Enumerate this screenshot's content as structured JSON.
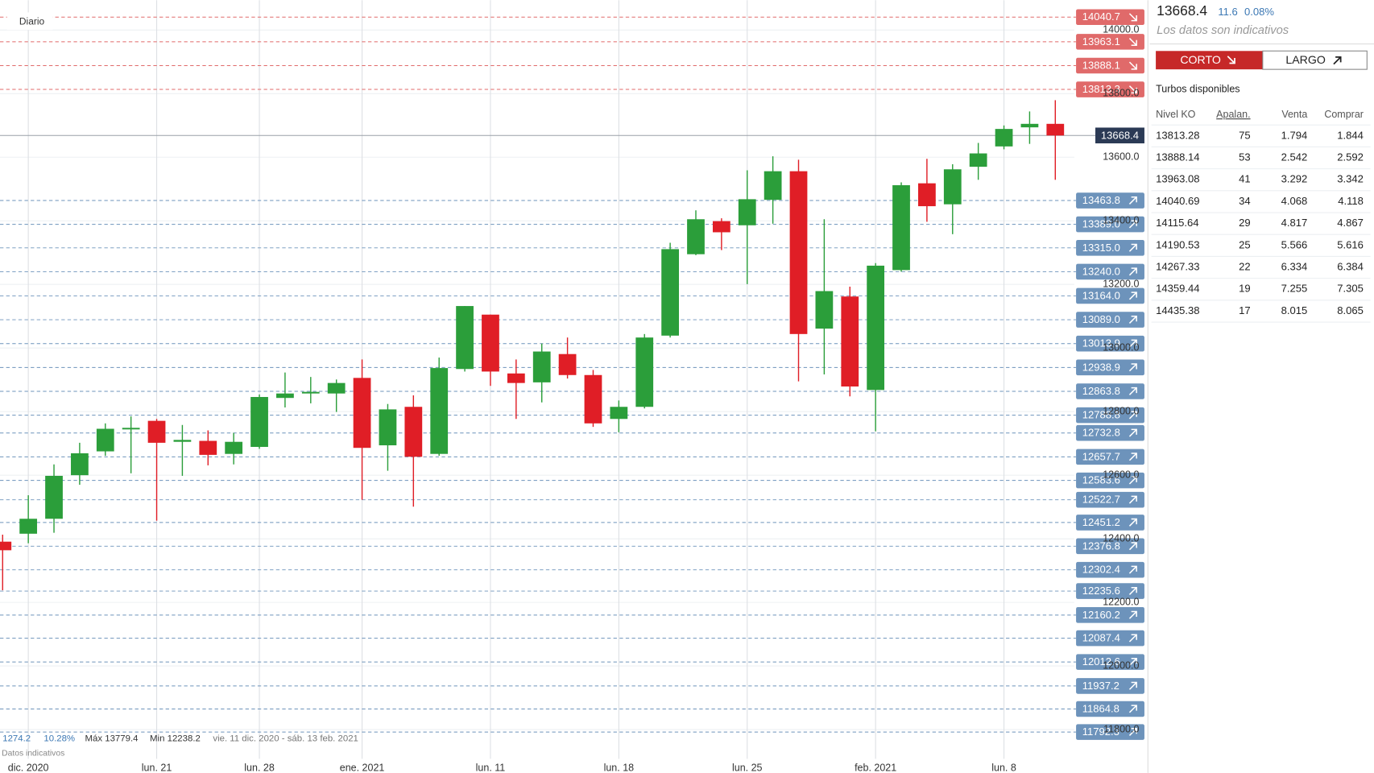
{
  "chart_data": {
    "type": "candlestick",
    "label": "Diario",
    "categories": [
      null,
      "dic. 2020",
      null,
      null,
      null,
      null,
      "lun. 21",
      null,
      null,
      null,
      "lun. 28",
      null,
      null,
      null,
      "ene. 2021",
      null,
      null,
      null,
      null,
      "lun. 11",
      null,
      null,
      null,
      null,
      "lun. 18",
      null,
      null,
      null,
      null,
      "lun. 25",
      null,
      null,
      null,
      null,
      "feb. 2021",
      null,
      null,
      null,
      null,
      "lun. 8",
      null,
      null
    ],
    "open": [
      12391,
      12416,
      12463,
      12600,
      12675,
      12744,
      12771,
      12705,
      12708,
      12667,
      12689,
      12843,
      12857,
      12857,
      12906,
      12694,
      12815,
      12667,
      12934,
      13105,
      12920,
      12892,
      12981,
      12915,
      12777,
      12815,
      13039,
      13295,
      13399,
      13386,
      13466,
      13556,
      13061,
      13162,
      12868,
      13245,
      13518,
      13452,
      13570,
      13634,
      13694,
      13705
    ],
    "high": [
      12413,
      12537,
      12634,
      12702,
      12763,
      12785,
      12777,
      12758,
      12741,
      12733,
      12854,
      12923,
      12909,
      12901,
      12964,
      12824,
      12851,
      12970,
      13132,
      13105,
      12964,
      13014,
      13033,
      12931,
      12835,
      13044,
      13331,
      13433,
      13408,
      13559,
      13603,
      13592,
      13405,
      13193,
      13267,
      13521,
      13595,
      13578,
      13645,
      13700,
      13744,
      13779.4
    ],
    "low": [
      12238.2,
      12386,
      12419,
      12570,
      12661,
      12606,
      12457,
      12598,
      12631,
      12634,
      12683,
      12813,
      12826,
      12799,
      12523,
      12614,
      12501,
      12661,
      12926,
      12881,
      12777,
      12829,
      12904,
      12752,
      12735,
      12810,
      13033,
      13292,
      13308,
      13201,
      13391,
      12895,
      12917,
      12848,
      12738,
      13240,
      13397,
      13358,
      13529,
      13625,
      13642,
      13529
    ],
    "close": [
      12364,
      12463,
      12598,
      12669,
      12746,
      12749,
      12702,
      12711,
      12664,
      12705,
      12846,
      12857,
      12862,
      12890,
      12686,
      12807,
      12658,
      12937,
      13132,
      12926,
      12890,
      12989,
      12915,
      12763,
      12815,
      13033,
      13311,
      13405,
      13364,
      13468,
      13556,
      13044,
      13179,
      12879,
      13259,
      13512,
      13446,
      13562,
      13612,
      13689,
      13705,
      13668.4
    ],
    "up_color": "#2b9e3a",
    "down_color": "#e01e26",
    "ylim": [
      11697,
      14094
    ],
    "yticks": [
      {
        "value": 14000,
        "label": "14000.0"
      },
      {
        "value": 13800,
        "label": "13800.0"
      },
      {
        "value": 13600,
        "label": "13600.0"
      },
      {
        "value": 13400,
        "label": "13400.0"
      },
      {
        "value": 13200,
        "label": "13200.0"
      },
      {
        "value": 13000,
        "label": "13000.0"
      },
      {
        "value": 12800,
        "label": "12800.0"
      },
      {
        "value": 12600,
        "label": "12600.0"
      },
      {
        "value": 12400,
        "label": "12400.0"
      },
      {
        "value": 12200,
        "label": "12200.0"
      },
      {
        "value": 12000,
        "label": "12000.0"
      },
      {
        "value": 11800,
        "label": "11800.0"
      }
    ],
    "last_price": 13668.4,
    "short_color": "#e06a6a",
    "long_color": "#6d93bb",
    "short_levels": [
      14040.7,
      13963.1,
      13888.1,
      13813.3
    ],
    "long_levels": [
      13463.8,
      {
        "value": 13389,
        "label": "13389.0"
      },
      {
        "value": 13315,
        "label": "13315.0"
      },
      {
        "value": 13240,
        "label": "13240.0"
      },
      {
        "value": 13164,
        "label": "13164.0"
      },
      {
        "value": 13089,
        "label": "13089.0"
      },
      13013.9,
      12938.9,
      12863.8,
      12788.8,
      12732.8,
      12657.7,
      12583.6,
      12522.7,
      12451.2,
      12376.8,
      12302.4,
      12235.6,
      12160.2,
      12087.4,
      12012.6,
      11937.2,
      11864.8,
      11792.3
    ],
    "stats": [
      "1274.2",
      "10.28%",
      "Máx 13779.4",
      "Min 12238.2",
      "vie. 11 dic. 2020 - sáb. 13 feb. 2021"
    ],
    "note": "Datos indicativos"
  },
  "panel": {
    "change": "11.6",
    "change_pct": "0.08%",
    "note": "Los datos son indicativos",
    "short_button": "CORTO",
    "long_button": "LARGO",
    "title": "Turbos disponibles",
    "columns": [
      "Nivel KO",
      "Apalan.",
      "Venta",
      "Comprar"
    ],
    "rows": [
      [
        "13813.28",
        "75",
        "1.794",
        "1.844"
      ],
      [
        "13888.14",
        "53",
        "2.542",
        "2.592"
      ],
      [
        "13963.08",
        "41",
        "3.292",
        "3.342"
      ],
      [
        "14040.69",
        "34",
        "4.068",
        "4.118"
      ],
      [
        "14115.64",
        "29",
        "4.817",
        "4.867"
      ],
      [
        "14190.53",
        "25",
        "5.566",
        "5.616"
      ],
      [
        "14267.33",
        "22",
        "6.334",
        "6.384"
      ],
      [
        "14359.44",
        "19",
        "7.255",
        "7.305"
      ],
      [
        "14435.38",
        "17",
        "8.015",
        "8.065"
      ]
    ]
  }
}
